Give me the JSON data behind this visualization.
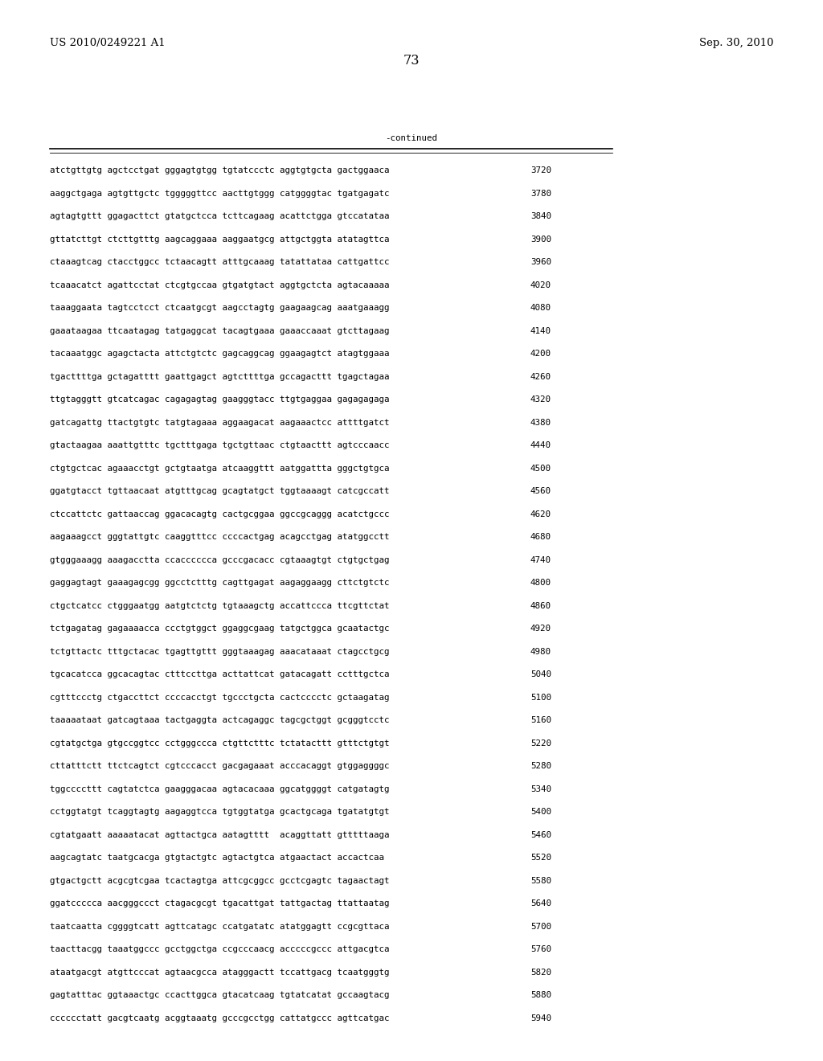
{
  "header_left": "US 2010/0249221 A1",
  "header_right": "Sep. 30, 2010",
  "page_number": "73",
  "continued_label": "-continued",
  "background_color": "#ffffff",
  "text_color": "#000000",
  "font_size_header": 9.5,
  "font_size_body": 7.8,
  "font_size_page": 11.5,
  "sequence_lines": [
    [
      "atctgttgtg agctcctgat gggagtgtgg tgtatccctc aggtgtgcta gactggaaca",
      "3720"
    ],
    [
      "aaggctgaga agtgttgctc tgggggttcc aacttgtggg catggggtac tgatgagatc",
      "3780"
    ],
    [
      "agtagtgttt ggagacttct gtatgctcca tcttcagaag acattctgga gtccatataa",
      "3840"
    ],
    [
      "gttatcttgt ctcttgtttg aagcaggaaa aaggaatgcg attgctggta atatagttca",
      "3900"
    ],
    [
      "ctaaagtcag ctacctggcc tctaacagtt atttgcaaag tatattataa cattgattcc",
      "3960"
    ],
    [
      "tcaaacatct agattcctat ctcgtgccaa gtgatgtact aggtgctcta agtacaaaaa",
      "4020"
    ],
    [
      "taaaggaata tagtcctcct ctcaatgcgt aagcctagtg gaagaagcag aaatgaaagg",
      "4080"
    ],
    [
      "gaaataagaa ttcaatagag tatgaggcat tacagtgaaa gaaaccaaat gtcttagaag",
      "4140"
    ],
    [
      "tacaaatggc agagctacta attctgtctc gagcaggcag ggaagagtct atagtggaaa",
      "4200"
    ],
    [
      "tgacttttga gctagatttt gaattgagct agtcttttga gccagacttt tgagctagaa",
      "4260"
    ],
    [
      "ttgtagggtt gtcatcagac cagagagtag gaagggtacc ttgtgaggaa gagagagaga",
      "4320"
    ],
    [
      "gatcagattg ttactgtgtc tatgtagaaa aggaagacat aagaaactcc attttgatct",
      "4380"
    ],
    [
      "gtactaagaa aaattgtttc tgctttgaga tgctgttaac ctgtaacttt agtcccaacc",
      "4440"
    ],
    [
      "ctgtgctcac agaaacctgt gctgtaatga atcaaggttt aatggattta gggctgtgca",
      "4500"
    ],
    [
      "ggatgtacct tgttaacaat atgtttgcag gcagtatgct tggtaaaagt catcgccatt",
      "4560"
    ],
    [
      "ctccattctc gattaaccag ggacacagtg cactgcggaa ggccgcaggg acatctgccc",
      "4620"
    ],
    [
      "aagaaagcct gggtattgtc caaggtttcc ccccactgag acagcctgag atatggcctt",
      "4680"
    ],
    [
      "gtgggaaagg aaagacctta ccacccccca gcccgacacc cgtaaagtgt ctgtgctgag",
      "4740"
    ],
    [
      "gaggagtagt gaaagagcgg ggcctctttg cagttgagat aagaggaagg cttctgtctc",
      "4800"
    ],
    [
      "ctgctcatcc ctgggaatgg aatgtctctg tgtaaagctg accattccca ttcgttctat",
      "4860"
    ],
    [
      "tctgagatag gagaaaacca ccctgtggct ggaggcgaag tatgctggca gcaatactgc",
      "4920"
    ],
    [
      "tctgttactc tttgctacac tgagttgttt gggtaaagag aaacataaat ctagcctgcg",
      "4980"
    ],
    [
      "tgcacatcca ggcacagtac ctttccttga acttattcat gatacagatt cctttgctca",
      "5040"
    ],
    [
      "cgtttccctg ctgaccttct ccccacctgt tgccctgcta cactcccctc gctaagatag",
      "5100"
    ],
    [
      "taaaaataat gatcagtaaa tactgaggta actcagaggc tagcgctggt gcgggtcctc",
      "5160"
    ],
    [
      "cgtatgctga gtgccggtcc cctgggccca ctgttctttc tctatacttt gtttctgtgt",
      "5220"
    ],
    [
      "cttatttctt ttctcagtct cgtcccacct gacgagaaat acccacaggt gtggaggggc",
      "5280"
    ],
    [
      "tggccccttt cagtatctca gaagggacaa agtacacaaa ggcatggggt catgatagtg",
      "5340"
    ],
    [
      "cctggtatgt tcaggtagtg aagaggtcca tgtggtatga gcactgcaga tgatatgtgt",
      "5400"
    ],
    [
      "cgtatgaatt aaaaatacat agttactgca aatagtttt  acaggttatt gtttttaaga",
      "5460"
    ],
    [
      "aagcagtatc taatgcacga gtgtactgtc agtactgtca atgaactact accactcaa",
      "5520"
    ],
    [
      "gtgactgctt acgcgtcgaa tcactagtga attcgcggcc gcctcgagtc tagaactagt",
      "5580"
    ],
    [
      "ggatccccca aacgggccct ctagacgcgt tgacattgat tattgactag ttattaatag",
      "5640"
    ],
    [
      "taatcaatta cggggtcatt agttcatagc ccatgatatc atatggagtt ccgcgttaca",
      "5700"
    ],
    [
      "taacttacgg taaatggccc gcctggctga ccgcccaacg acccccgccc attgacgtca",
      "5760"
    ],
    [
      "ataatgacgt atgttcccat agtaacgcca atagggactt tccattgacg tcaatgggtg",
      "5820"
    ],
    [
      "gagtatttac ggtaaactgc ccacttggca gtacatcaag tgtatcatat gccaagtacg",
      "5880"
    ],
    [
      "cccccctatt gacgtcaatg acggtaaatg gcccgcctgg cattatgccc agttcatgac",
      "5940"
    ]
  ]
}
